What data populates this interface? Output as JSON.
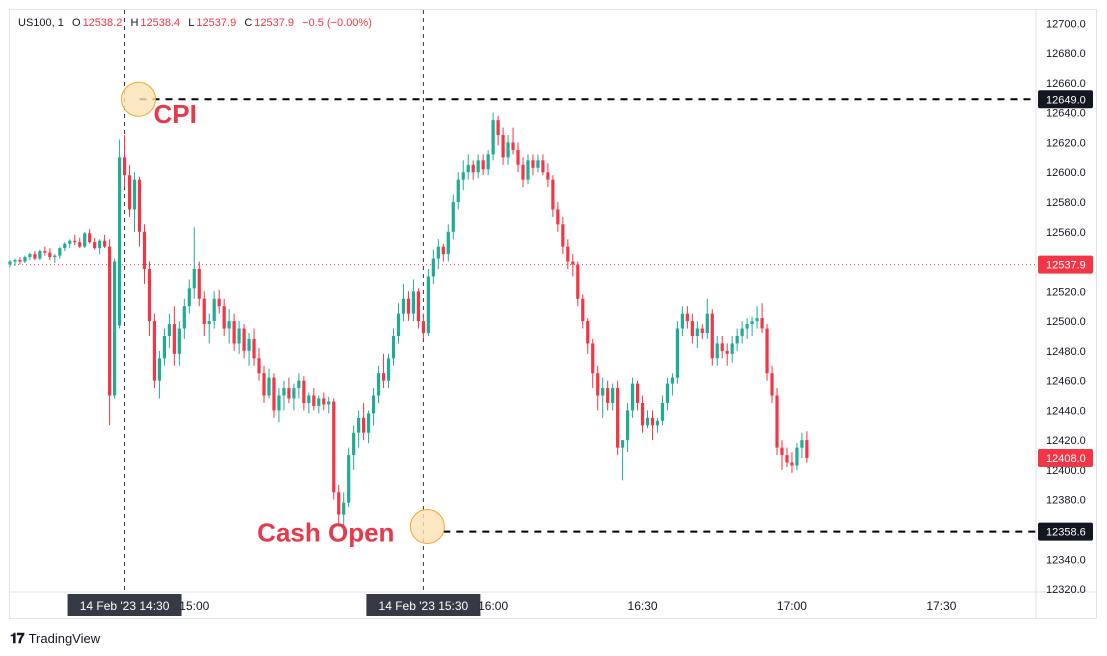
{
  "legend": {
    "symbol": "US100, 1",
    "o_label": "O",
    "o_value": "12538.2",
    "h_label": "H",
    "h_value": "12538.4",
    "l_label": "L",
    "l_value": "12537.9",
    "c_label": "C",
    "c_value": "12537.9",
    "change": "−0.5 (−0.00%)"
  },
  "brand": {
    "name": "TradingView"
  },
  "colors": {
    "up": "#22ab94",
    "down": "#f23645",
    "annotation": "#e8394a",
    "marker_fill": "#fde2b5",
    "marker_stroke": "#f5a623"
  },
  "chart_data": {
    "type": "candlestick",
    "y_ticks": [
      12320,
      12340,
      12360,
      12380,
      12400,
      12420,
      12440,
      12460,
      12480,
      12500,
      12520,
      12540,
      12560,
      12580,
      12600,
      12620,
      12640,
      12660,
      12680,
      12700
    ],
    "y_tick_labels": [
      "12320.0",
      "12340.0",
      "12360.0",
      "12380.0",
      "12400.0",
      "12420.0",
      "12440.0",
      "12460.0",
      "12480.0",
      "12500.0",
      "12520.0",
      "12540.0",
      "12560.0",
      "12580.0",
      "12600.0",
      "12620.0",
      "12640.0",
      "12660.0",
      "12680.0",
      "12700.0"
    ],
    "ylim": [
      12318,
      12709
    ],
    "x_ticks": [
      {
        "minute": 886,
        "label": "14 Feb '23   14:30",
        "highlight": true
      },
      {
        "minute": 900,
        "label": "15:00",
        "highlight": false
      },
      {
        "minute": 946,
        "label": "14 Feb '23   15:30",
        "highlight": true
      },
      {
        "minute": 960,
        "label": "16:00",
        "highlight": false
      },
      {
        "minute": 990,
        "label": "16:30",
        "highlight": false
      },
      {
        "minute": 1020,
        "label": "17:00",
        "highlight": false
      },
      {
        "minute": 1050,
        "label": "17:30",
        "highlight": false
      }
    ],
    "x_range": [
      863,
      1069
    ],
    "crosshair_minutes": [
      886,
      946
    ],
    "price_labels": [
      {
        "value": 12649.0,
        "label": "12649.0",
        "style": "dark"
      },
      {
        "value": 12537.9,
        "label": "12537.9",
        "style": "red"
      },
      {
        "value": 12408.0,
        "label": "12408.0",
        "style": "red"
      },
      {
        "value": 12358.6,
        "label": "12358.6",
        "style": "dark"
      }
    ],
    "current_price": 12537.9,
    "levels": [
      {
        "value": 12649.0,
        "from_minute": 889
      },
      {
        "value": 12358.6,
        "from_minute": 950
      }
    ],
    "annotations": [
      {
        "text": "CPI",
        "minute": 889,
        "value": 12643,
        "anchor": "start"
      },
      {
        "text": "Cash Open",
        "minute": 944,
        "value": 12362,
        "anchor": "end"
      }
    ],
    "markers": [
      {
        "minute": 889,
        "value": 12649.0
      },
      {
        "minute": 947,
        "value": 12362.0
      }
    ],
    "candles": [
      [
        12538,
        12541,
        12536,
        12540
      ],
      [
        12540,
        12542,
        12537,
        12541
      ],
      [
        12541,
        12543,
        12538,
        12540
      ],
      [
        12540,
        12544,
        12539,
        12543
      ],
      [
        12543,
        12546,
        12541,
        12545
      ],
      [
        12545,
        12547,
        12541,
        12542
      ],
      [
        12542,
        12548,
        12541,
        12547
      ],
      [
        12547,
        12550,
        12544,
        12546
      ],
      [
        12546,
        12549,
        12541,
        12543
      ],
      [
        12543,
        12545,
        12539,
        12544
      ],
      [
        12544,
        12550,
        12542,
        12549
      ],
      [
        12549,
        12553,
        12547,
        12552
      ],
      [
        12552,
        12555,
        12549,
        12554
      ],
      [
        12554,
        12558,
        12551,
        12553
      ],
      [
        12553,
        12556,
        12549,
        12550
      ],
      [
        12550,
        12560,
        12549,
        12559
      ],
      [
        12559,
        12562,
        12552,
        12553
      ],
      [
        12553,
        12556,
        12548,
        12549
      ],
      [
        12549,
        12555,
        12545,
        12554
      ],
      [
        12554,
        12558,
        12549,
        12550
      ],
      [
        12550,
        12555,
        12430,
        12450
      ],
      [
        12450,
        12542,
        12448,
        12540
      ],
      [
        12497,
        12622,
        12495,
        12610
      ],
      [
        12610,
        12625,
        12590,
        12598
      ],
      [
        12598,
        12605,
        12570,
        12575
      ],
      [
        12575,
        12600,
        12560,
        12595
      ],
      [
        12595,
        12597,
        12550,
        12560
      ],
      [
        12560,
        12565,
        12525,
        12535
      ],
      [
        12535,
        12540,
        12490,
        12500
      ],
      [
        12500,
        12505,
        12455,
        12460
      ],
      [
        12460,
        12480,
        12448,
        12475
      ],
      [
        12475,
        12495,
        12470,
        12490
      ],
      [
        12490,
        12505,
        12482,
        12498
      ],
      [
        12498,
        12510,
        12470,
        12478
      ],
      [
        12478,
        12500,
        12470,
        12495
      ],
      [
        12495,
        12515,
        12488,
        12510
      ],
      [
        12510,
        12528,
        12505,
        12522
      ],
      [
        12522,
        12563,
        12515,
        12535
      ],
      [
        12535,
        12540,
        12510,
        12515
      ],
      [
        12515,
        12520,
        12490,
        12498
      ],
      [
        12498,
        12505,
        12485,
        12500
      ],
      [
        12500,
        12520,
        12495,
        12515
      ],
      [
        12515,
        12521,
        12505,
        12510
      ],
      [
        12510,
        12515,
        12490,
        12495
      ],
      [
        12495,
        12508,
        12485,
        12500
      ],
      [
        12500,
        12505,
        12480,
        12485
      ],
      [
        12485,
        12500,
        12478,
        12495
      ],
      [
        12495,
        12498,
        12475,
        12480
      ],
      [
        12480,
        12492,
        12470,
        12488
      ],
      [
        12488,
        12495,
        12470,
        12475
      ],
      [
        12475,
        12482,
        12460,
        12465
      ],
      [
        12465,
        12470,
        12445,
        12450
      ],
      [
        12450,
        12468,
        12448,
        12462
      ],
      [
        12462,
        12465,
        12435,
        12440
      ],
      [
        12440,
        12455,
        12432,
        12450
      ],
      [
        12450,
        12460,
        12440,
        12455
      ],
      [
        12455,
        12462,
        12445,
        12448
      ],
      [
        12448,
        12458,
        12440,
        12455
      ],
      [
        12455,
        12465,
        12448,
        12460
      ],
      [
        12460,
        12463,
        12440,
        12445
      ],
      [
        12445,
        12452,
        12438,
        12450
      ],
      [
        12450,
        12455,
        12440,
        12443
      ],
      [
        12443,
        12450,
        12438,
        12448
      ],
      [
        12448,
        12452,
        12440,
        12444
      ],
      [
        12444,
        12449,
        12438,
        12446
      ],
      [
        12446,
        12448,
        12380,
        12385
      ],
      [
        12385,
        12390,
        12362,
        12370
      ],
      [
        12370,
        12385,
        12358,
        12378
      ],
      [
        12378,
        12415,
        12375,
        12410
      ],
      [
        12410,
        12430,
        12400,
        12425
      ],
      [
        12425,
        12440,
        12415,
        12435
      ],
      [
        12435,
        12445,
        12420,
        12425
      ],
      [
        12425,
        12440,
        12418,
        12438
      ],
      [
        12438,
        12455,
        12430,
        12450
      ],
      [
        12450,
        12470,
        12445,
        12465
      ],
      [
        12465,
        12478,
        12455,
        12460
      ],
      [
        12460,
        12478,
        12455,
        12475
      ],
      [
        12475,
        12495,
        12470,
        12490
      ],
      [
        12490,
        12512,
        12485,
        12505
      ],
      [
        12505,
        12525,
        12500,
        12515
      ],
      [
        12515,
        12520,
        12500,
        12505
      ],
      [
        12505,
        12528,
        12500,
        12520
      ],
      [
        12520,
        12522,
        12495,
        12500
      ],
      [
        12500,
        12505,
        12488,
        12492
      ],
      [
        12492,
        12535,
        12490,
        12530
      ],
      [
        12530,
        12548,
        12525,
        12542
      ],
      [
        12542,
        12555,
        12535,
        12550
      ],
      [
        12550,
        12552,
        12540,
        12545
      ],
      [
        12545,
        12565,
        12540,
        12560
      ],
      [
        12560,
        12585,
        12555,
        12580
      ],
      [
        12580,
        12600,
        12575,
        12595
      ],
      [
        12595,
        12608,
        12588,
        12600
      ],
      [
        12600,
        12612,
        12595,
        12605
      ],
      [
        12605,
        12608,
        12595,
        12600
      ],
      [
        12600,
        12612,
        12596,
        12608
      ],
      [
        12608,
        12612,
        12598,
        12602
      ],
      [
        12602,
        12615,
        12598,
        12612
      ],
      [
        12612,
        12640,
        12608,
        12635
      ],
      [
        12635,
        12638,
        12618,
        12625
      ],
      [
        12625,
        12630,
        12605,
        12610
      ],
      [
        12610,
        12625,
        12605,
        12620
      ],
      [
        12620,
        12630,
        12612,
        12615
      ],
      [
        12615,
        12620,
        12600,
        12605
      ],
      [
        12605,
        12610,
        12590,
        12595
      ],
      [
        12595,
        12612,
        12592,
        12608
      ],
      [
        12608,
        12612,
        12598,
        12603
      ],
      [
        12603,
        12612,
        12600,
        12608
      ],
      [
        12608,
        12612,
        12598,
        12600
      ],
      [
        12600,
        12606,
        12590,
        12595
      ],
      [
        12595,
        12598,
        12570,
        12575
      ],
      [
        12575,
        12580,
        12560,
        12565
      ],
      [
        12565,
        12570,
        12545,
        12550
      ],
      [
        12550,
        12555,
        12535,
        12540
      ],
      [
        12540,
        12545,
        12530,
        12538
      ],
      [
        12538,
        12540,
        12510,
        12515
      ],
      [
        12515,
        12518,
        12495,
        12500
      ],
      [
        12500,
        12502,
        12478,
        12485
      ],
      [
        12485,
        12488,
        12455,
        12465
      ],
      [
        12465,
        12470,
        12440,
        12450
      ],
      [
        12450,
        12462,
        12435,
        12455
      ],
      [
        12455,
        12460,
        12440,
        12445
      ],
      [
        12445,
        12458,
        12440,
        12455
      ],
      [
        12455,
        12460,
        12410,
        12415
      ],
      [
        12415,
        12420,
        12393,
        12420
      ],
      [
        12420,
        12445,
        12412,
        12440
      ],
      [
        12440,
        12462,
        12435,
        12458
      ],
      [
        12458,
        12460,
        12440,
        12445
      ],
      [
        12445,
        12450,
        12425,
        12430
      ],
      [
        12430,
        12440,
        12428,
        12435
      ],
      [
        12435,
        12440,
        12420,
        12430
      ],
      [
        12430,
        12435,
        12425,
        12433
      ],
      [
        12433,
        12450,
        12430,
        12445
      ],
      [
        12445,
        12462,
        12440,
        12458
      ],
      [
        12458,
        12465,
        12450,
        12462
      ],
      [
        12462,
        12500,
        12458,
        12495
      ],
      [
        12495,
        12510,
        12490,
        12505
      ],
      [
        12505,
        12510,
        12495,
        12500
      ],
      [
        12500,
        12505,
        12485,
        12490
      ],
      [
        12490,
        12500,
        12482,
        12495
      ],
      [
        12495,
        12498,
        12488,
        12492
      ],
      [
        12492,
        12515,
        12488,
        12505
      ],
      [
        12505,
        12508,
        12470,
        12475
      ],
      [
        12475,
        12490,
        12470,
        12485
      ],
      [
        12485,
        12490,
        12475,
        12480
      ],
      [
        12480,
        12485,
        12470,
        12478
      ],
      [
        12478,
        12490,
        12472,
        12485
      ],
      [
        12485,
        12495,
        12480,
        12490
      ],
      [
        12490,
        12500,
        12485,
        12495
      ],
      [
        12495,
        12502,
        12488,
        12498
      ],
      [
        12498,
        12503,
        12490,
        12500
      ],
      [
        12500,
        12510,
        12495,
        12502
      ],
      [
        12502,
        12512,
        12492,
        12495
      ],
      [
        12495,
        12498,
        12460,
        12465
      ],
      [
        12465,
        12470,
        12445,
        12450
      ],
      [
        12450,
        12455,
        12410,
        12415
      ],
      [
        12415,
        12420,
        12400,
        12410
      ],
      [
        12410,
        12415,
        12402,
        12405
      ],
      [
        12405,
        12412,
        12398,
        12403
      ],
      [
        12403,
        12418,
        12400,
        12415
      ],
      [
        12415,
        12425,
        12408,
        12420
      ],
      [
        12420,
        12426,
        12405,
        12408
      ]
    ]
  }
}
